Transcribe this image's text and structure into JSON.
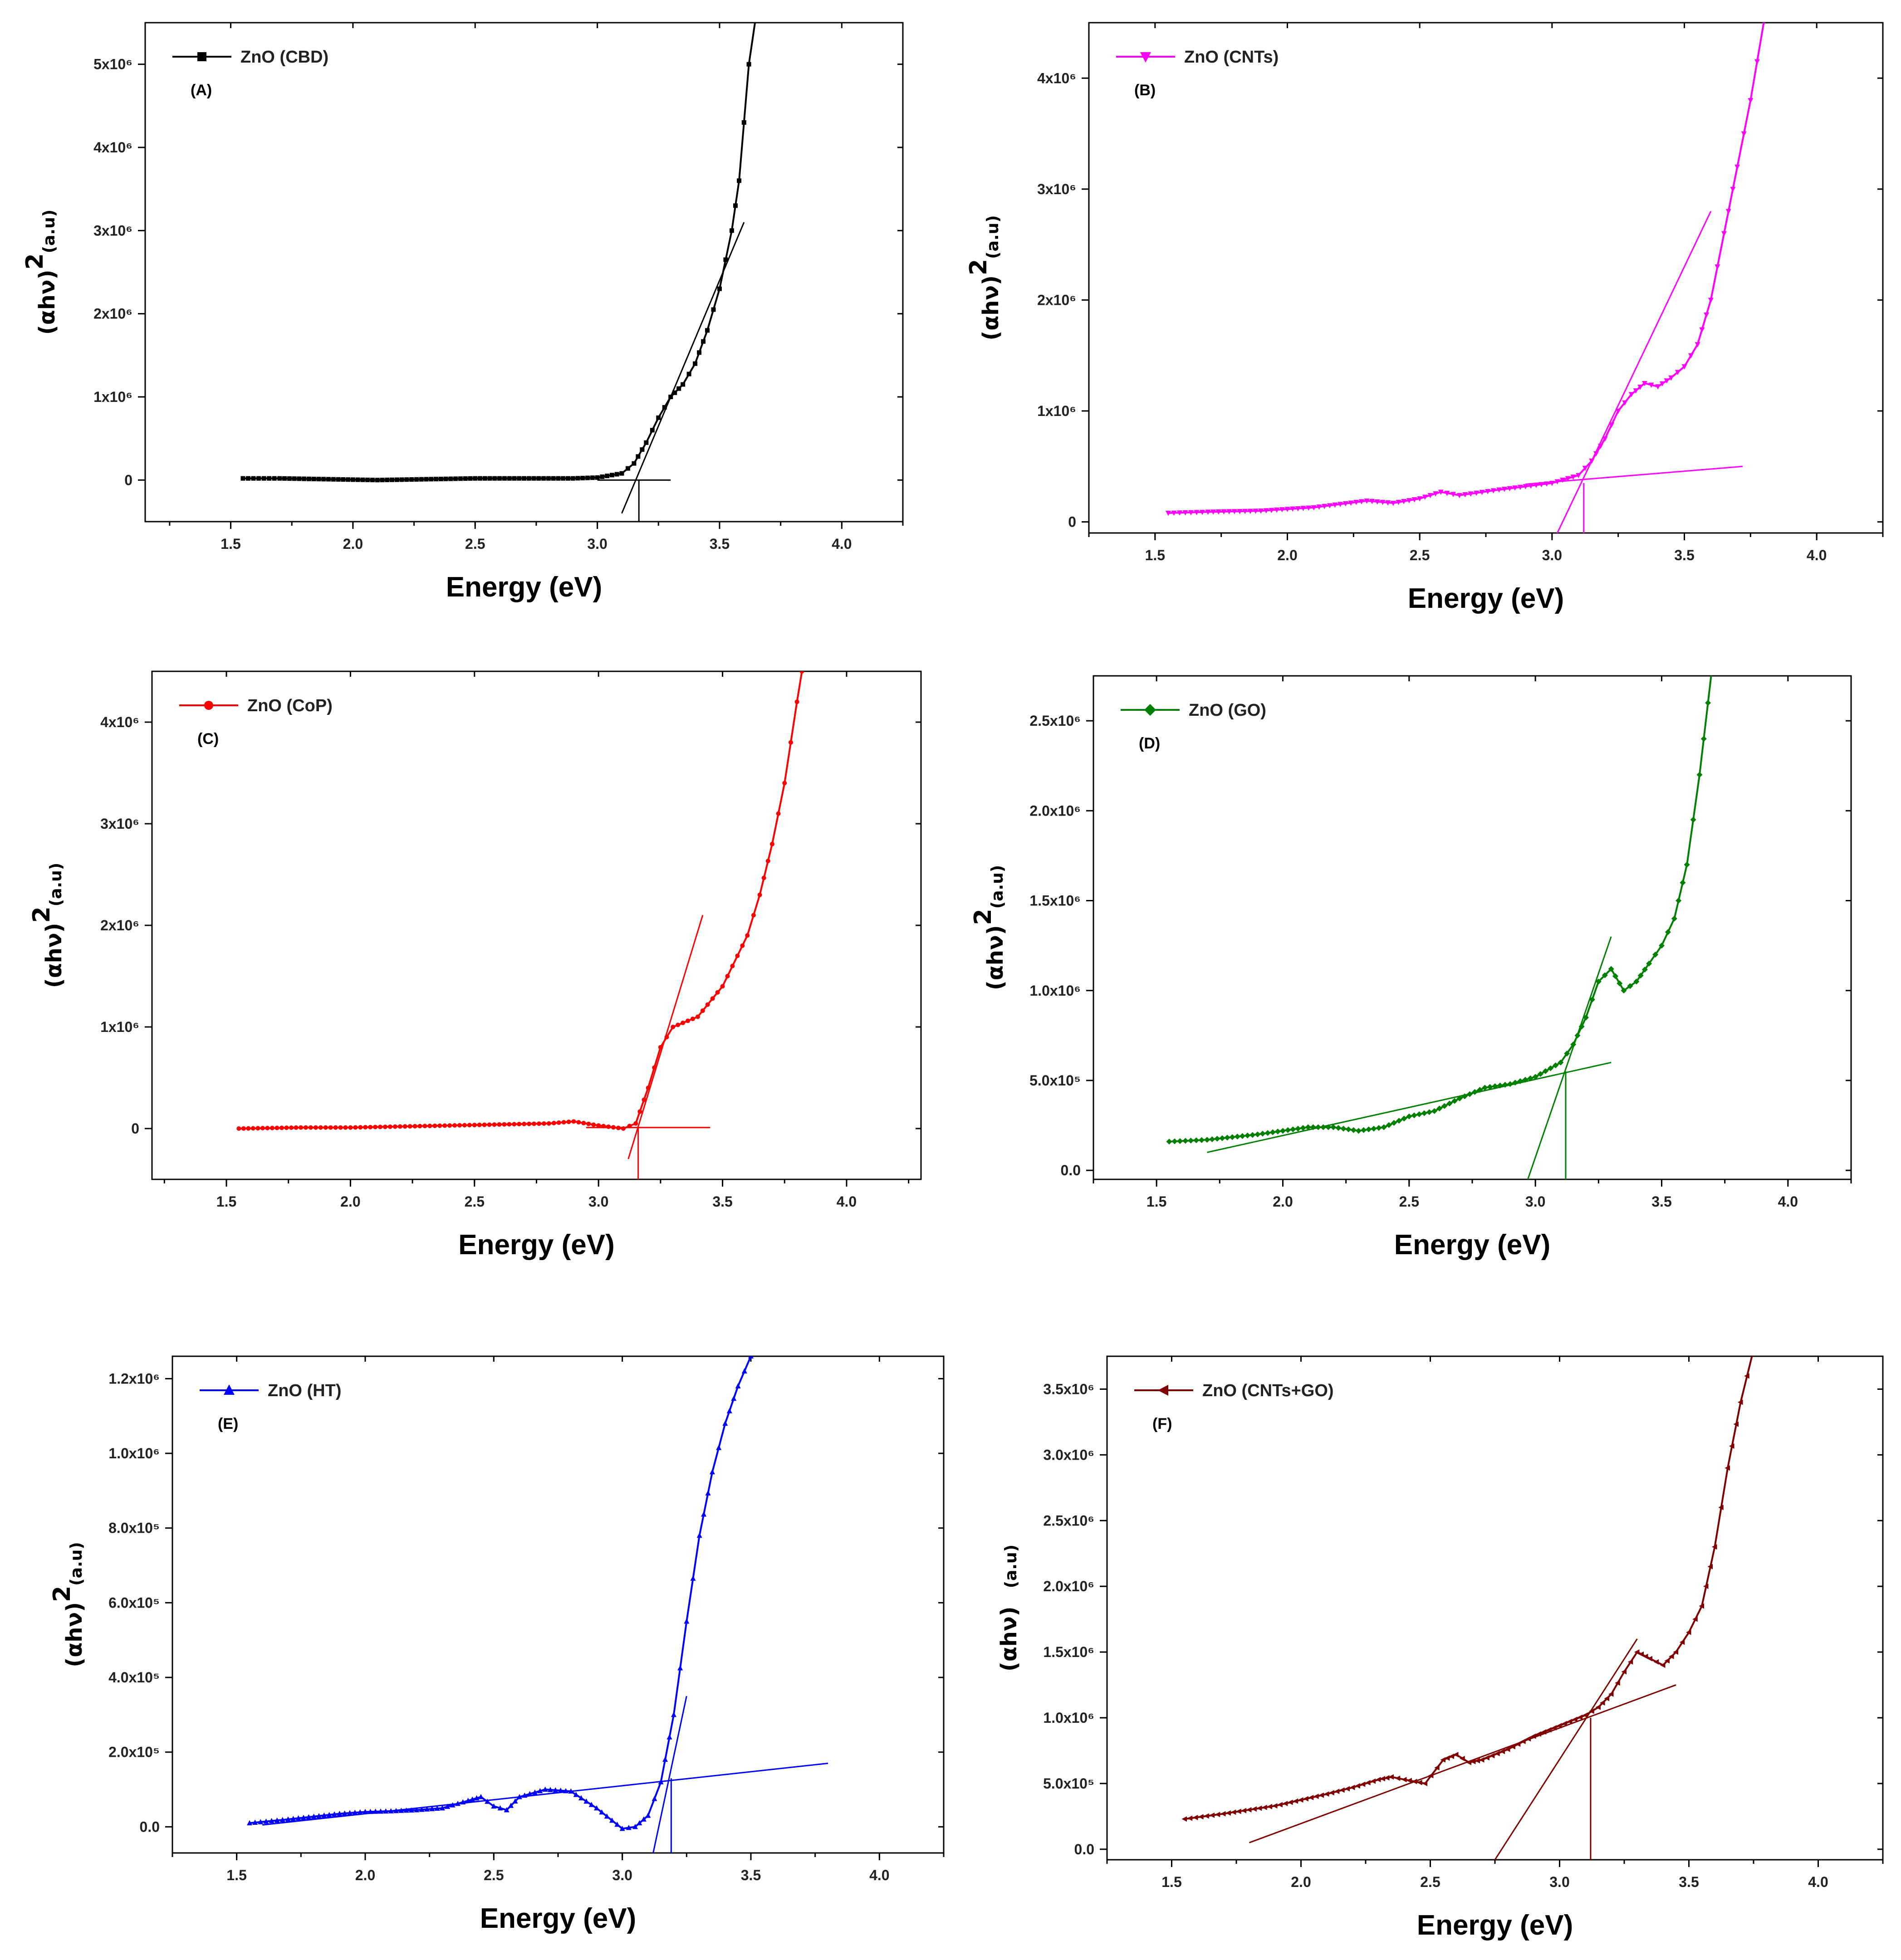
{
  "chart_data": [
    {
      "id": "A",
      "type": "line",
      "panel_label": "(A)",
      "legend": "ZnO (CBD)",
      "color": "#000000",
      "marker": "square",
      "xlabel": "Energy (eV)",
      "ylabel_main": "(αhν)",
      "ylabel_sup": "2",
      "ylabel_unit": "(a.u)",
      "xlim": [
        1.15,
        4.25
      ],
      "ylim": [
        -0.5,
        5.5
      ],
      "xticks": [
        1.5,
        2.0,
        2.5,
        3.0,
        3.5,
        4.0
      ],
      "xtick_labels": [
        "1.5",
        "2.0",
        "2.5",
        "3.0",
        "3.5",
        "4.0"
      ],
      "yticks": [
        0,
        1,
        2,
        3,
        4,
        5
      ],
      "ytick_labels": [
        "0",
        "1x10⁶",
        "2x10⁶",
        "3x10⁶",
        "4x10⁶",
        "5x10⁶"
      ],
      "series": [
        {
          "name": "ZnO (CBD)",
          "x": [
            1.55,
            1.7,
            1.9,
            2.1,
            2.3,
            2.5,
            2.7,
            2.9,
            3.0,
            3.1,
            3.15,
            3.2,
            3.25,
            3.3,
            3.35,
            3.4,
            3.45,
            3.5,
            3.55,
            3.58,
            3.6,
            3.62,
            3.65
          ],
          "y": [
            0.02,
            0.02,
            0.01,
            0.0,
            0.01,
            0.02,
            0.02,
            0.02,
            0.03,
            0.08,
            0.2,
            0.45,
            0.75,
            1.0,
            1.15,
            1.4,
            1.8,
            2.3,
            3.0,
            3.6,
            4.3,
            5.0,
            5.6
          ]
        }
      ],
      "fits": [
        {
          "x": [
            3.1,
            3.6
          ],
          "y": [
            -0.4,
            3.1
          ]
        },
        {
          "x": [
            3.0,
            3.3
          ],
          "y": [
            0.0,
            0.0
          ]
        },
        {
          "x": [
            3.17,
            3.17
          ],
          "y": [
            0.0,
            -0.5
          ]
        }
      ]
    },
    {
      "id": "B",
      "type": "line",
      "panel_label": "(B)",
      "legend": "ZnO (CNTs)",
      "color": "#ff00ff",
      "marker": "triangle-down",
      "xlabel": "Energy (eV)",
      "ylabel_main": "(αhν)",
      "ylabel_sup": "2",
      "ylabel_unit": "(a.u)",
      "xlim": [
        1.25,
        4.25
      ],
      "ylim": [
        -0.1,
        4.5
      ],
      "xticks": [
        1.5,
        2.0,
        2.5,
        3.0,
        3.5,
        4.0
      ],
      "xtick_labels": [
        "1.5",
        "2.0",
        "2.5",
        "3.0",
        "3.5",
        "4.0"
      ],
      "yticks": [
        0,
        1,
        2,
        3,
        4
      ],
      "ytick_labels": [
        "0",
        "1x10⁶",
        "2x10⁶",
        "3x10⁶",
        "4x10⁶"
      ],
      "series": [
        {
          "name": "ZnO (CNTs)",
          "x": [
            1.55,
            1.7,
            1.9,
            2.1,
            2.2,
            2.3,
            2.4,
            2.5,
            2.58,
            2.65,
            2.8,
            3.0,
            3.1,
            3.15,
            3.2,
            3.25,
            3.3,
            3.35,
            3.4,
            3.45,
            3.5,
            3.55,
            3.6,
            3.65,
            3.7,
            3.75,
            3.8
          ],
          "y": [
            0.08,
            0.09,
            0.1,
            0.13,
            0.16,
            0.19,
            0.17,
            0.21,
            0.27,
            0.24,
            0.29,
            0.35,
            0.42,
            0.55,
            0.75,
            1.0,
            1.15,
            1.25,
            1.22,
            1.3,
            1.4,
            1.6,
            2.0,
            2.6,
            3.2,
            3.8,
            4.5
          ]
        }
      ],
      "fits": [
        {
          "x": [
            3.0,
            3.6
          ],
          "y": [
            -0.2,
            2.8
          ]
        },
        {
          "x": [
            2.9,
            3.72
          ],
          "y": [
            0.34,
            0.5
          ]
        },
        {
          "x": [
            3.12,
            3.12
          ],
          "y": [
            0.35,
            -0.1
          ]
        }
      ]
    },
    {
      "id": "C",
      "type": "line",
      "panel_label": "(C)",
      "legend": "ZnO (CoP)",
      "color": "#ff0000",
      "marker": "circle",
      "xlabel": "Energy (eV)",
      "ylabel_main": "(αhν)",
      "ylabel_sup": "2",
      "ylabel_unit": "(a.u)",
      "xlim": [
        1.2,
        4.3
      ],
      "ylim": [
        -0.5,
        4.5
      ],
      "xticks": [
        1.5,
        2.0,
        2.5,
        3.0,
        3.5,
        4.0
      ],
      "xtick_labels": [
        "1.5",
        "2.0",
        "2.5",
        "3.0",
        "3.5",
        "4.0"
      ],
      "yticks": [
        0,
        1,
        2,
        3,
        4
      ],
      "ytick_labels": [
        "0",
        "1x10⁶",
        "2x10⁶",
        "3x10⁶",
        "4x10⁶"
      ],
      "series": [
        {
          "name": "ZnO (CoP)",
          "x": [
            1.55,
            1.8,
            2.0,
            2.2,
            2.4,
            2.6,
            2.8,
            2.9,
            3.0,
            3.1,
            3.15,
            3.2,
            3.25,
            3.3,
            3.4,
            3.5,
            3.6,
            3.65,
            3.7,
            3.75,
            3.8,
            3.82
          ],
          "y": [
            0.0,
            0.01,
            0.01,
            0.02,
            0.03,
            0.04,
            0.05,
            0.07,
            0.03,
            0.0,
            0.05,
            0.4,
            0.8,
            1.0,
            1.1,
            1.4,
            1.9,
            2.3,
            2.8,
            3.4,
            4.2,
            4.5
          ]
        }
      ],
      "fits": [
        {
          "x": [
            3.12,
            3.42
          ],
          "y": [
            -0.3,
            2.1
          ]
        },
        {
          "x": [
            2.95,
            3.45
          ],
          "y": [
            0.01,
            0.01
          ]
        },
        {
          "x": [
            3.16,
            3.16
          ],
          "y": [
            0.01,
            -0.5
          ]
        }
      ]
    },
    {
      "id": "D",
      "type": "line",
      "panel_label": "(D)",
      "legend": "ZnO (GO)",
      "color": "#008000",
      "marker": "diamond",
      "xlabel": "Energy (eV)",
      "ylabel_main": "(αhν)",
      "ylabel_sup": "2",
      "ylabel_unit": "(a.u)",
      "xlim": [
        1.25,
        4.25
      ],
      "ylim": [
        -0.05,
        2.75
      ],
      "xticks": [
        1.5,
        2.0,
        2.5,
        3.0,
        3.5,
        4.0
      ],
      "xtick_labels": [
        "1.5",
        "2.0",
        "2.5",
        "3.0",
        "3.5",
        "4.0"
      ],
      "yticks": [
        0.0,
        0.5,
        1.0,
        1.5,
        2.0,
        2.5
      ],
      "ytick_labels": [
        "0.0",
        "5.0x10⁵",
        "1.0x10⁶",
        "1.5x10⁶",
        "2.0x10⁶",
        "2.5x10⁶"
      ],
      "series": [
        {
          "name": "ZnO (GO)",
          "x": [
            1.55,
            1.7,
            1.9,
            2.1,
            2.2,
            2.3,
            2.4,
            2.5,
            2.6,
            2.7,
            2.8,
            2.9,
            3.0,
            3.1,
            3.15,
            3.2,
            3.25,
            3.3,
            3.35,
            3.4,
            3.45,
            3.5,
            3.55,
            3.6,
            3.65,
            3.7
          ],
          "y": [
            0.16,
            0.17,
            0.2,
            0.24,
            0.24,
            0.22,
            0.24,
            0.3,
            0.33,
            0.4,
            0.46,
            0.48,
            0.52,
            0.6,
            0.7,
            0.85,
            1.05,
            1.12,
            1.0,
            1.05,
            1.15,
            1.25,
            1.4,
            1.7,
            2.2,
            2.8
          ]
        }
      ],
      "fits": [
        {
          "x": [
            1.7,
            3.3
          ],
          "y": [
            0.1,
            0.6
          ]
        },
        {
          "x": [
            2.97,
            3.3
          ],
          "y": [
            -0.05,
            1.3
          ]
        },
        {
          "x": [
            3.12,
            3.12
          ],
          "y": [
            0.55,
            -0.05
          ]
        }
      ]
    },
    {
      "id": "E",
      "type": "line",
      "panel_label": "(E)",
      "legend": "ZnO (HT)",
      "color": "#0000ff",
      "marker": "triangle-up",
      "xlabel": "Energy (eV)",
      "ylabel_main": "(αhν)",
      "ylabel_sup": "2",
      "ylabel_unit": "(a.u)",
      "xlim": [
        1.25,
        4.25
      ],
      "ylim": [
        -0.7,
        12.6
      ],
      "xticks": [
        1.5,
        2.0,
        2.5,
        3.0,
        3.5,
        4.0
      ],
      "xtick_labels": [
        "1.5",
        "2.0",
        "2.5",
        "3.0",
        "3.5",
        "4.0"
      ],
      "yticks": [
        0,
        2,
        4,
        6,
        8,
        10,
        12
      ],
      "ytick_labels": [
        "0.0",
        "2.0x10⁵",
        "4.0x10⁵",
        "6.0x10⁵",
        "8.0x10⁵",
        "1.0x10⁶",
        "1.2x10⁶"
      ],
      "series": [
        {
          "name": "ZnO (HT)",
          "x": [
            1.55,
            1.7,
            1.9,
            2.0,
            2.1,
            2.2,
            2.3,
            2.4,
            2.45,
            2.5,
            2.55,
            2.6,
            2.7,
            2.8,
            2.9,
            3.0,
            3.05,
            3.1,
            3.15,
            3.2,
            3.25,
            3.3,
            3.35,
            3.4,
            3.45,
            3.5
          ],
          "y": [
            0.1,
            0.2,
            0.35,
            0.4,
            0.42,
            0.45,
            0.5,
            0.7,
            0.8,
            0.55,
            0.45,
            0.8,
            1.0,
            0.95,
            0.5,
            -0.05,
            0.0,
            0.3,
            1.2,
            3.0,
            5.5,
            7.8,
            9.5,
            10.8,
            11.8,
            12.6
          ]
        }
      ],
      "fits": [
        {
          "x": [
            1.6,
            3.8
          ],
          "y": [
            0.05,
            1.7
          ]
        },
        {
          "x": [
            3.12,
            3.25
          ],
          "y": [
            -0.7,
            3.5
          ]
        },
        {
          "x": [
            3.19,
            3.19
          ],
          "y": [
            1.3,
            -0.7
          ]
        }
      ]
    },
    {
      "id": "F",
      "type": "line",
      "panel_label": "(F)",
      "legend": "ZnO (CNTs+GO)",
      "color": "#800000",
      "marker": "triangle-left",
      "xlabel": "Energy (eV)",
      "ylabel_main": "(αhν)",
      "ylabel_sup": "",
      "ylabel_unit": "(a.u)",
      "xlim": [
        1.25,
        4.25
      ],
      "ylim": [
        -0.08,
        3.75
      ],
      "xticks": [
        1.5,
        2.0,
        2.5,
        3.0,
        3.5,
        4.0
      ],
      "xtick_labels": [
        "1.5",
        "2.0",
        "2.5",
        "3.0",
        "3.5",
        "4.0"
      ],
      "yticks": [
        0.0,
        0.5,
        1.0,
        1.5,
        2.0,
        2.5,
        3.0,
        3.5
      ],
      "ytick_labels": [
        "0.0",
        "5.0x10⁵",
        "1.0x10⁶",
        "1.5x10⁶",
        "2.0x10⁶",
        "2.5x10⁶",
        "3.0x10⁶",
        "3.5x10⁶"
      ],
      "series": [
        {
          "name": "ZnO (CNTs+GO)",
          "x": [
            1.55,
            1.7,
            1.9,
            2.1,
            2.2,
            2.3,
            2.35,
            2.4,
            2.48,
            2.55,
            2.6,
            2.65,
            2.7,
            2.8,
            2.9,
            3.0,
            3.1,
            3.15,
            3.2,
            3.25,
            3.3,
            3.35,
            3.4,
            3.45,
            3.5,
            3.55,
            3.6,
            3.65,
            3.7,
            3.75
          ],
          "y": [
            0.23,
            0.27,
            0.33,
            0.42,
            0.47,
            0.53,
            0.55,
            0.53,
            0.5,
            0.68,
            0.72,
            0.66,
            0.68,
            0.76,
            0.86,
            0.94,
            1.02,
            1.08,
            1.18,
            1.35,
            1.5,
            1.45,
            1.4,
            1.5,
            1.65,
            1.85,
            2.3,
            2.9,
            3.4,
            3.8
          ]
        }
      ],
      "fits": [
        {
          "x": [
            1.8,
            3.45
          ],
          "y": [
            0.05,
            1.25
          ]
        },
        {
          "x": [
            2.75,
            3.3
          ],
          "y": [
            -0.08,
            1.6
          ]
        },
        {
          "x": [
            3.12,
            3.12
          ],
          "y": [
            1.0,
            -0.08
          ]
        }
      ]
    }
  ]
}
